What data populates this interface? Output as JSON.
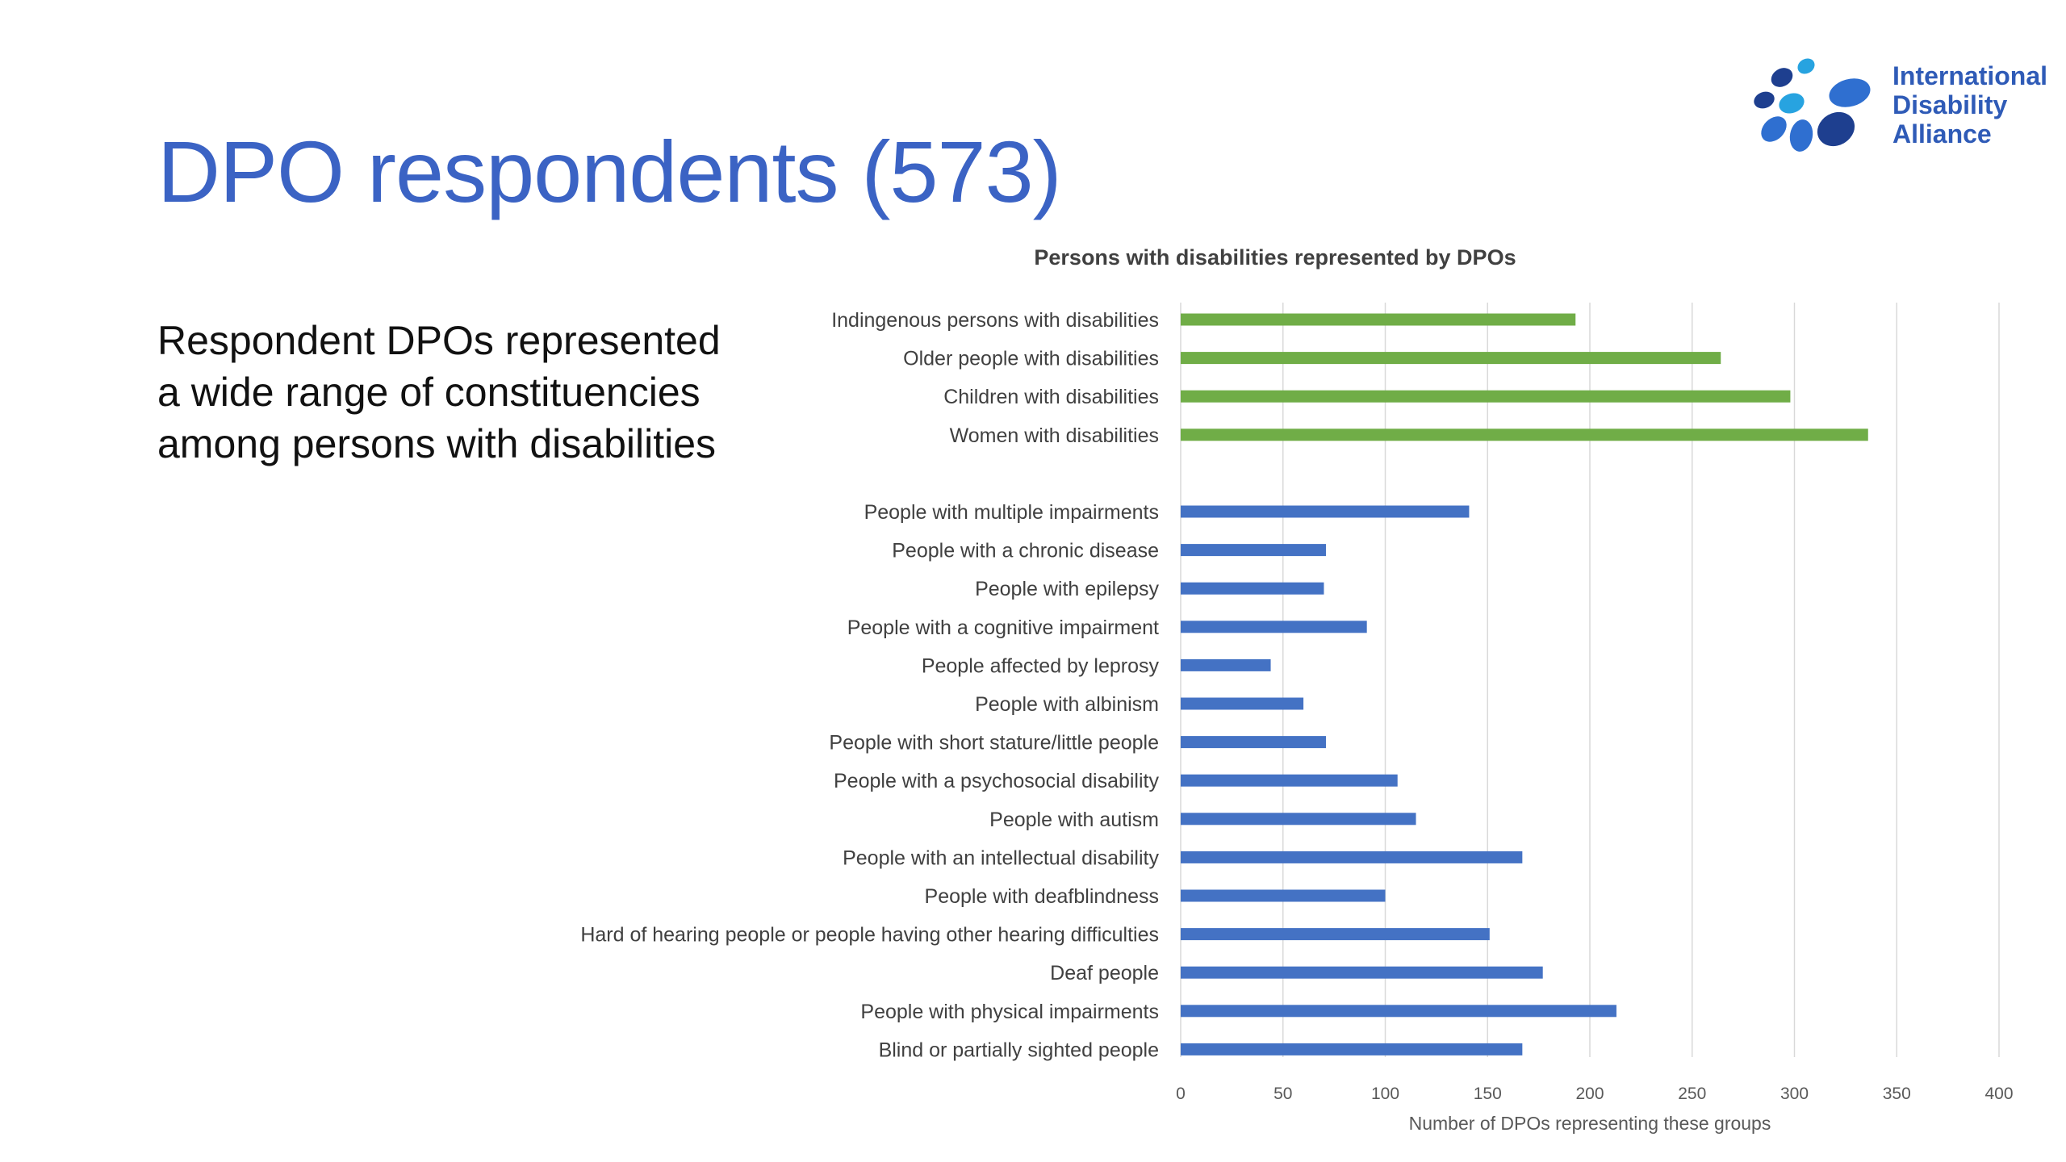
{
  "slide": {
    "title": "DPO respondents (573)",
    "intro": "Respondent DPOs represented a wide range of constituencies among persons with disabilities"
  },
  "logo": {
    "lines": [
      "International",
      "Disability",
      "Alliance"
    ],
    "colors": [
      "#1e3f8f",
      "#2f6fd0",
      "#27a3e0"
    ]
  },
  "chart_data": {
    "type": "bar",
    "orientation": "horizontal",
    "title": "Persons with disabilities represented by DPOs",
    "xlabel": "Number of DPOs representing these groups",
    "ylabel": "",
    "xlim": [
      0,
      400
    ],
    "xticks": [
      0,
      50,
      100,
      150,
      200,
      250,
      300,
      350,
      400
    ],
    "grid": true,
    "legend": "none",
    "colors": {
      "group": "#70ad47",
      "impairment": "#4472c4"
    },
    "categories": [
      "Indingenous persons with disabilities",
      "Older people with disabilities",
      "Children with disabilities",
      "Women with disabilities",
      "",
      "People with multiple impairments",
      "People with a chronic disease",
      "People with epilepsy",
      "People with a cognitive impairment",
      "People affected by leprosy",
      "People with albinism",
      "People with short stature/little people",
      "People with a psychosocial disability",
      "People with autism",
      "People with an intellectual disability",
      "People with deafblindness",
      "Hard of hearing people or people having other hearing difficulties",
      "Deaf people",
      "People with physical impairments",
      "Blind or partially sighted people"
    ],
    "values": [
      193,
      264,
      298,
      336,
      null,
      141,
      71,
      70,
      91,
      44,
      60,
      71,
      106,
      115,
      167,
      100,
      151,
      177,
      213,
      167
    ],
    "bar_color_keys": [
      "group",
      "group",
      "group",
      "group",
      null,
      "impairment",
      "impairment",
      "impairment",
      "impairment",
      "impairment",
      "impairment",
      "impairment",
      "impairment",
      "impairment",
      "impairment",
      "impairment",
      "impairment",
      "impairment",
      "impairment",
      "impairment"
    ]
  }
}
